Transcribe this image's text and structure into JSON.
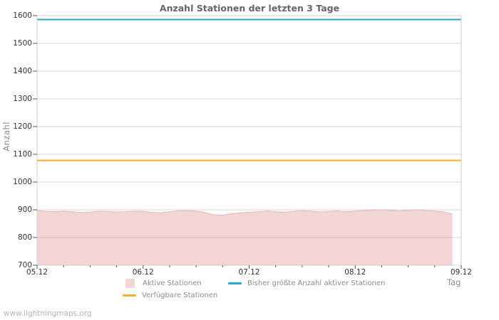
{
  "watermark": "www.lightningmaps.org",
  "chart_data": {
    "type": "area",
    "title": "Anzahl Stationen der letzten 3 Tage",
    "xlabel": "Tag",
    "ylabel": "Anzahl",
    "ylim": [
      700,
      1600
    ],
    "y_ticks": [
      700,
      800,
      900,
      1000,
      1100,
      1200,
      1300,
      1400,
      1500,
      1600
    ],
    "x_ticks": [
      "05.12",
      "06.12",
      "07.12",
      "08.12",
      "09.12"
    ],
    "x_minor_ticks_per_day": 3,
    "x_range_hours": [
      0,
      96
    ],
    "grid": "horizontal-only",
    "legend_position": "bottom",
    "series": [
      {
        "name": "Aktive Stationen",
        "type": "area",
        "fill": "rgba(226,140,140,0.37)",
        "edge": "#e4b6b6",
        "legend_swatch": "#f2d6d6",
        "x_unit": "hours-since-05.12-00:00",
        "points": [
          [
            0,
            897
          ],
          [
            2,
            894
          ],
          [
            4,
            893
          ],
          [
            6,
            895
          ],
          [
            8,
            893
          ],
          [
            10,
            890
          ],
          [
            12,
            892
          ],
          [
            14,
            895
          ],
          [
            16,
            894
          ],
          [
            18,
            892
          ],
          [
            20,
            893
          ],
          [
            22,
            895
          ],
          [
            24,
            894
          ],
          [
            26,
            891
          ],
          [
            28,
            889
          ],
          [
            30,
            893
          ],
          [
            32,
            896
          ],
          [
            34,
            897
          ],
          [
            36,
            895
          ],
          [
            38,
            890
          ],
          [
            40,
            882
          ],
          [
            42,
            880
          ],
          [
            44,
            886
          ],
          [
            46,
            889
          ],
          [
            48,
            891
          ],
          [
            50,
            893
          ],
          [
            52,
            896
          ],
          [
            54,
            893
          ],
          [
            56,
            891
          ],
          [
            58,
            894
          ],
          [
            60,
            897
          ],
          [
            62,
            895
          ],
          [
            64,
            892
          ],
          [
            66,
            894
          ],
          [
            68,
            896
          ],
          [
            70,
            893
          ],
          [
            72,
            895
          ],
          [
            74,
            897
          ],
          [
            76,
            899
          ],
          [
            78,
            900
          ],
          [
            80,
            898
          ],
          [
            82,
            896
          ],
          [
            84,
            898
          ],
          [
            86,
            900
          ],
          [
            88,
            897
          ],
          [
            90,
            895
          ],
          [
            92,
            893
          ],
          [
            94,
            885
          ]
        ]
      },
      {
        "name": "Bisher größte Anzahl aktiver Stationen",
        "type": "hline",
        "color": "#29a9c9",
        "value": 1586
      },
      {
        "name": "Verfügbare Stationen",
        "type": "hline",
        "color": "#f9ae26",
        "value": 1078
      }
    ]
  },
  "colors": {
    "grid": "#d4d4d4",
    "axis_border": "#cccccc",
    "tick": "#555555",
    "title_text": "#666666",
    "tick_label_text": "#333333",
    "axis_title_text": "#8a8a8a",
    "legend_text": "#8c8c8c",
    "watermark_text": "#b3b3b3",
    "background": "#ffffff"
  }
}
